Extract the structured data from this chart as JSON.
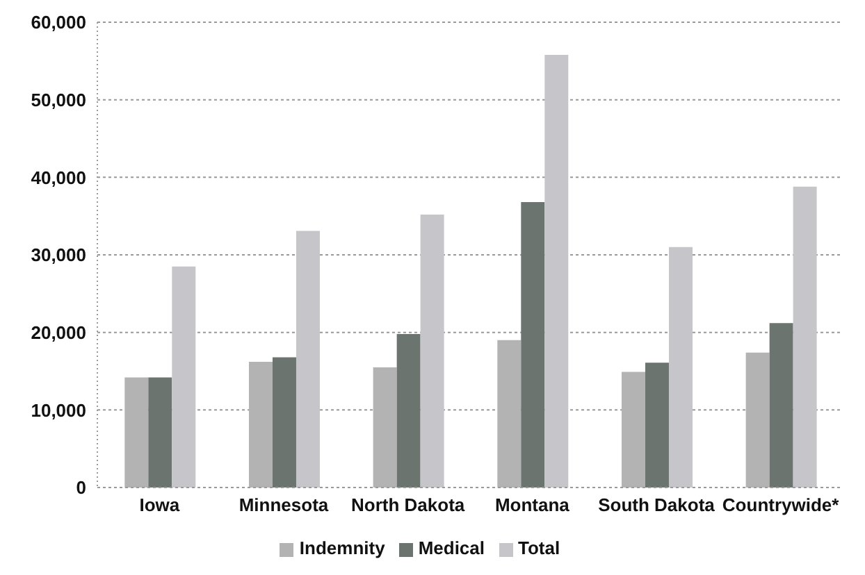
{
  "chart_data": {
    "type": "bar",
    "categories": [
      "Iowa",
      "Minnesota",
      "North Dakota",
      "Montana",
      "South Dakota",
      "Countrywide*"
    ],
    "series": [
      {
        "name": "Indemnity",
        "color": "#b3b3b3",
        "values": [
          14200,
          16200,
          15500,
          19000,
          14900,
          17400
        ]
      },
      {
        "name": "Medical",
        "color": "#6c7470",
        "values": [
          14200,
          16800,
          19800,
          36800,
          16100,
          21200
        ]
      },
      {
        "name": "Total",
        "color": "#c6c6ca",
        "values": [
          28500,
          33100,
          35200,
          55800,
          31000,
          38800
        ]
      }
    ],
    "ylim": [
      0,
      60000
    ],
    "yticks": [
      {
        "value": 0,
        "label": "0"
      },
      {
        "value": 10000,
        "label": "10,000"
      },
      {
        "value": 20000,
        "label": "20,000"
      },
      {
        "value": 30000,
        "label": "30,000"
      },
      {
        "value": 40000,
        "label": "40,000"
      },
      {
        "value": 50000,
        "label": "50,000"
      },
      {
        "value": 60000,
        "label": "60,000"
      }
    ],
    "grid": "y",
    "legend": "bottom"
  }
}
